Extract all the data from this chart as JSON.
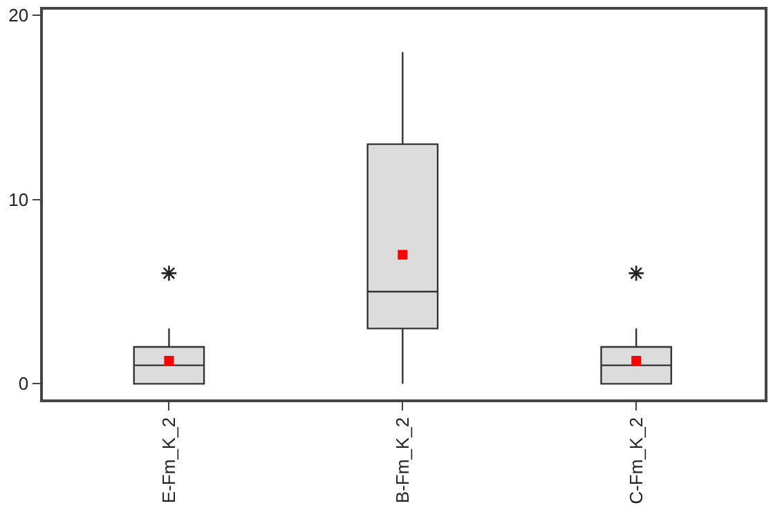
{
  "chart_data": {
    "type": "box",
    "categories": [
      "E-Fm_K_2",
      "B-Fm_K_2",
      "C-Fm_K_2"
    ],
    "boxes": [
      {
        "low": 0,
        "q1": 0,
        "median": 1,
        "q3": 2,
        "high": 3,
        "mean": 1.25,
        "outliers": [
          6
        ]
      },
      {
        "low": 0,
        "q1": 3,
        "median": 5,
        "q3": 13,
        "high": 18,
        "mean": 7
      },
      {
        "low": 0,
        "q1": 0,
        "median": 1,
        "q3": 2,
        "high": 3,
        "mean": 1.25,
        "outliers": [
          6
        ]
      }
    ],
    "color": "#dcdcdc",
    "ylim": [
      -0.85,
      20.3
    ],
    "yticks": [
      0,
      10,
      20
    ]
  }
}
